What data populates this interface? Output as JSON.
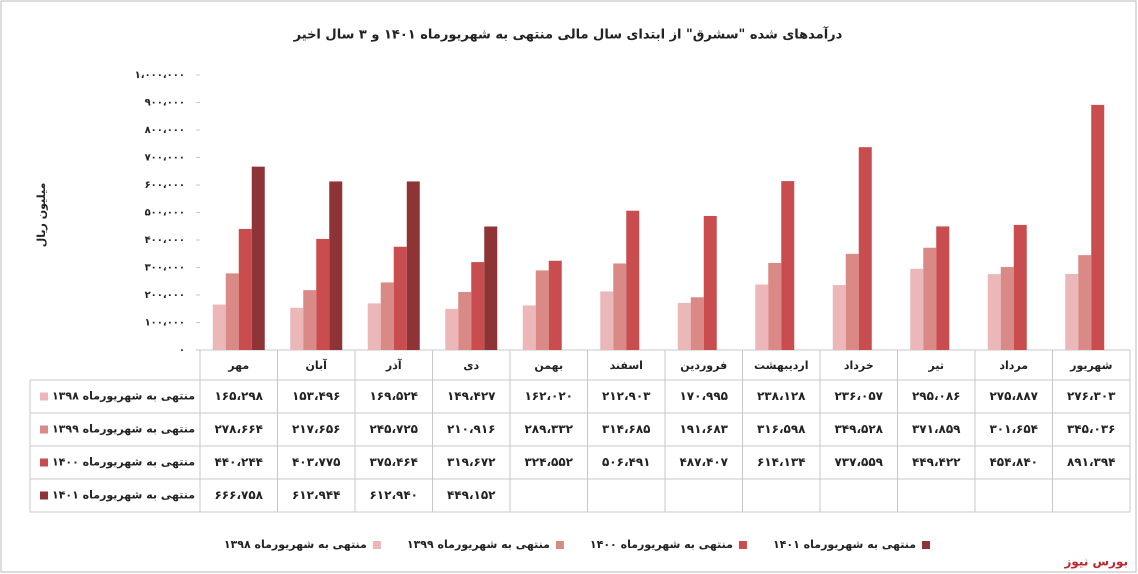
{
  "chart_data": {
    "type": "bar",
    "title": "درآمدهای شده \"سشرق\" از ابتدای سال مالی منتهی به شهریورماه ۱۴۰۱ و ۳ سال اخیر",
    "y_label": "میلیون ریال",
    "source": "بورس نیوز",
    "categories": [
      "مهر",
      "آبان",
      "آذر",
      "دی",
      "بهمن",
      "اسفند",
      "فروردین",
      "اردیبهشت",
      "خرداد",
      "تیر",
      "مرداد",
      "شهریور"
    ],
    "series": [
      {
        "name": "منتهی به شهریورماه ۱۳۹۸",
        "color": "#ecb7b9",
        "values": [
          165298,
          153496,
          169524,
          149427,
          162020,
          212903,
          170995,
          238128,
          236057,
          295086,
          275887,
          276303
        ],
        "value_labels": [
          "۱۶۵،۲۹۸",
          "۱۵۳،۴۹۶",
          "۱۶۹،۵۲۴",
          "۱۴۹،۴۲۷",
          "۱۶۲،۰۲۰",
          "۲۱۲،۹۰۳",
          "۱۷۰،۹۹۵",
          "۲۳۸،۱۲۸",
          "۲۳۶،۰۵۷",
          "۲۹۵،۰۸۶",
          "۲۷۵،۸۸۷",
          "۲۷۶،۳۰۳"
        ]
      },
      {
        "name": "منتهی به شهریورماه ۱۳۹۹",
        "color": "#d98a86",
        "values": [
          278664,
          217656,
          245725,
          210916,
          289332,
          314685,
          191683,
          316598,
          349528,
          371859,
          301654,
          345036
        ],
        "value_labels": [
          "۲۷۸،۶۶۴",
          "۲۱۷،۶۵۶",
          "۲۴۵،۷۲۵",
          "۲۱۰،۹۱۶",
          "۲۸۹،۳۳۲",
          "۳۱۴،۶۸۵",
          "۱۹۱،۶۸۳",
          "۳۱۶،۵۹۸",
          "۳۴۹،۵۲۸",
          "۳۷۱،۸۵۹",
          "۳۰۱،۶۵۴",
          "۳۴۵،۰۳۶"
        ]
      },
      {
        "name": "منتهی به شهریورماه ۱۴۰۰",
        "color": "#c94d4f",
        "values": [
          440244,
          403775,
          375464,
          319672,
          324552,
          506491,
          487407,
          614134,
          737559,
          449422,
          454840,
          891394
        ],
        "value_labels": [
          "۴۴۰،۲۴۴",
          "۴۰۳،۷۷۵",
          "۳۷۵،۴۶۴",
          "۳۱۹،۶۷۲",
          "۳۲۴،۵۵۲",
          "۵۰۶،۴۹۱",
          "۴۸۷،۴۰۷",
          "۶۱۴،۱۳۴",
          "۷۳۷،۵۵۹",
          "۴۴۹،۴۲۲",
          "۴۵۴،۸۴۰",
          "۸۹۱،۳۹۴"
        ]
      },
      {
        "name": "منتهی به شهریورماه ۱۴۰۱",
        "color": "#8e3437",
        "values": [
          666758,
          612944,
          612940,
          449152,
          null,
          null,
          null,
          null,
          null,
          null,
          null,
          null
        ],
        "value_labels": [
          "۶۶۶،۷۵۸",
          "۶۱۲،۹۴۴",
          "۶۱۲،۹۴۰",
          "۴۴۹،۱۵۲",
          null,
          null,
          null,
          null,
          null,
          null,
          null,
          null
        ]
      }
    ],
    "ylim": [
      0,
      1000000
    ],
    "yticks": [
      {
        "value": 0,
        "label": "۰"
      },
      {
        "value": 100000,
        "label": "۱۰۰،۰۰۰"
      },
      {
        "value": 200000,
        "label": "۲۰۰،۰۰۰"
      },
      {
        "value": 300000,
        "label": "۳۰۰،۰۰۰"
      },
      {
        "value": 400000,
        "label": "۴۰۰،۰۰۰"
      },
      {
        "value": 500000,
        "label": "۵۰۰،۰۰۰"
      },
      {
        "value": 600000,
        "label": "۶۰۰،۰۰۰"
      },
      {
        "value": 700000,
        "label": "۷۰۰،۰۰۰"
      },
      {
        "value": 800000,
        "label": "۸۰۰،۰۰۰"
      },
      {
        "value": 900000,
        "label": "۹۰۰،۰۰۰"
      },
      {
        "value": 1000000,
        "label": "۱،۰۰۰،۰۰۰"
      }
    ],
    "grid": false
  }
}
